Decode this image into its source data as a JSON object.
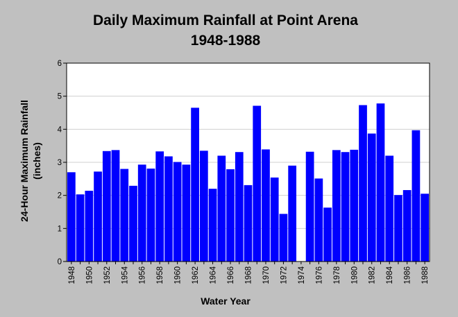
{
  "chart_data": {
    "type": "bar",
    "title": "Daily Maximum Rainfall at Point Arena",
    "subtitle": "1948-1988",
    "xlabel": "Water Year",
    "ylabel": "24-Hour Maximum Rainfall",
    "ylabel_unit": "(inches)",
    "ylim": [
      0,
      6
    ],
    "yticks": [
      "0",
      "1",
      "2",
      "3",
      "4",
      "5",
      "6"
    ],
    "xtick_labels": [
      "1948",
      "1950",
      "1952",
      "1954",
      "1956",
      "1958",
      "1960",
      "1962",
      "1964",
      "1966",
      "1968",
      "1970",
      "1972",
      "1974",
      "1976",
      "1978",
      "1980",
      "1982",
      "1984",
      "1986",
      "1988"
    ],
    "categories": [
      "1948",
      "1949",
      "1950",
      "1951",
      "1952",
      "1953",
      "1954",
      "1955",
      "1956",
      "1957",
      "1958",
      "1959",
      "1960",
      "1961",
      "1962",
      "1963",
      "1964",
      "1965",
      "1966",
      "1967",
      "1968",
      "1969",
      "1970",
      "1971",
      "1972",
      "1973",
      "1974",
      "1975",
      "1976",
      "1977",
      "1978",
      "1979",
      "1980",
      "1981",
      "1982",
      "1983",
      "1984",
      "1985",
      "1986",
      "1987",
      "1988"
    ],
    "values": [
      2.7,
      2.03,
      2.14,
      2.72,
      3.34,
      3.37,
      2.8,
      2.29,
      2.93,
      2.81,
      3.33,
      3.18,
      3.01,
      2.93,
      4.65,
      3.35,
      2.2,
      3.2,
      2.79,
      3.31,
      2.31,
      4.71,
      3.39,
      2.54,
      1.44,
      2.9,
      null,
      3.32,
      2.51,
      1.63,
      3.37,
      3.31,
      3.38,
      4.73,
      3.87,
      4.78,
      3.2,
      2.01,
      2.16,
      3.97,
      2.05
    ],
    "bar_color": "#0000ff",
    "plot_background": "#ffffff",
    "page_background": "#c0c0c0",
    "grid": {
      "horizontal": true,
      "vertical": false,
      "color": "#cfcfcf"
    }
  }
}
